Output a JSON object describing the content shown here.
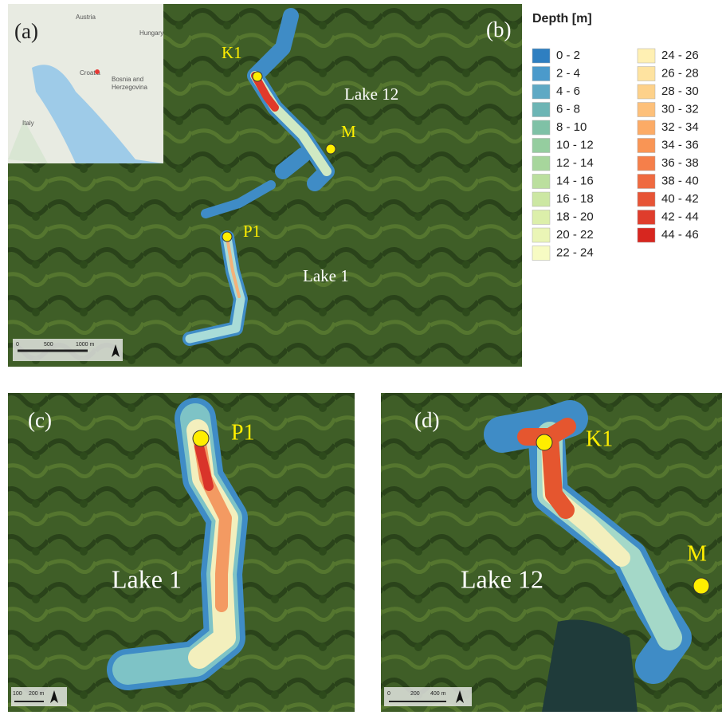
{
  "panels": {
    "a": "(a)",
    "b": "(b)",
    "c": "(c)",
    "d": "(d)"
  },
  "inset": {
    "labels": [
      "Austria",
      "Hungary",
      "Croatia",
      "Bosnia and",
      "Herzegovina",
      "Italy"
    ]
  },
  "overview": {
    "lakes": [
      "Lake 12",
      "Lake 1"
    ],
    "stations": [
      "K1",
      "M",
      "P1"
    ],
    "scale": [
      "0",
      "500",
      "1000 m"
    ]
  },
  "legend": {
    "title": "Depth [m]",
    "items": [
      {
        "label": "0 - 2",
        "color": "#2f7fc1"
      },
      {
        "label": "2 - 4",
        "color": "#4b9acb"
      },
      {
        "label": "4 - 6",
        "color": "#5fa9c4"
      },
      {
        "label": "6 - 8",
        "color": "#6db5b5"
      },
      {
        "label": "8 - 10",
        "color": "#7fc1a6"
      },
      {
        "label": "10 - 12",
        "color": "#95cd9f"
      },
      {
        "label": "12 - 14",
        "color": "#a7d69c"
      },
      {
        "label": "14 - 16",
        "color": "#bbdf9e"
      },
      {
        "label": "16 - 18",
        "color": "#cce7a3"
      },
      {
        "label": "18 - 20",
        "color": "#dcefaa"
      },
      {
        "label": "20 - 22",
        "color": "#eaf5b6"
      },
      {
        "label": "22 - 24",
        "color": "#f7fbc3"
      },
      {
        "label": "24 - 26",
        "color": "#fff0b3"
      },
      {
        "label": "26 - 28",
        "color": "#fee3a0"
      },
      {
        "label": "28 - 30",
        "color": "#fdd18a"
      },
      {
        "label": "30 - 32",
        "color": "#fdc07a"
      },
      {
        "label": "32 - 34",
        "color": "#fcab66"
      },
      {
        "label": "34 - 36",
        "color": "#f99555"
      },
      {
        "label": "36 - 38",
        "color": "#f57f4a"
      },
      {
        "label": "38 - 40",
        "color": "#ef6a40"
      },
      {
        "label": "40 - 42",
        "color": "#e75436"
      },
      {
        "label": "42 - 44",
        "color": "#df3d2c"
      },
      {
        "label": "44 - 46",
        "color": "#d7261f"
      }
    ]
  },
  "detail_c": {
    "lake": "Lake 1",
    "station": "P1",
    "scale": [
      "100",
      "200 m"
    ]
  },
  "detail_d": {
    "lake": "Lake 12",
    "stations": [
      "K1",
      "M"
    ],
    "scale": [
      "0",
      "200",
      "400 m"
    ]
  }
}
